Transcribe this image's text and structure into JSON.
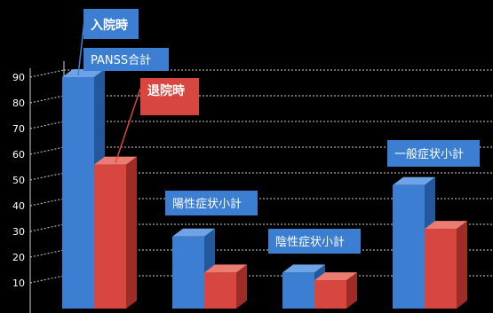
{
  "chart_data": {
    "type": "bar",
    "categories": [
      "PANSS合計",
      "陽性症状小計",
      "陰性症状小計",
      "一般症状小計"
    ],
    "series": [
      {
        "name": "入院時",
        "values": [
          90,
          28,
          14,
          48
        ],
        "color": "#3c7fd2"
      },
      {
        "name": "退院時",
        "values": [
          56,
          14,
          11,
          31
        ],
        "color": "#d8473f"
      }
    ],
    "yticks": [
      10,
      20,
      30,
      40,
      50,
      60,
      70,
      80,
      90
    ],
    "ylim": [
      0,
      90
    ],
    "grid": true,
    "three_d": true
  }
}
